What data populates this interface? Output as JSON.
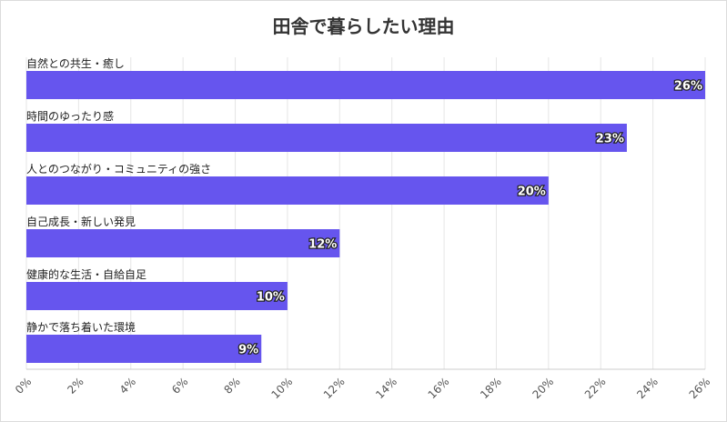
{
  "chart_data": {
    "type": "bar",
    "orientation": "horizontal",
    "title": "田舎で暮らしたい理由",
    "categories": [
      "自然との共生・癒し",
      "時間のゆったり感",
      "人とのつながり・コミュニティの強さ",
      "自己成長・新しい発見",
      "健康的な生活・自給自足",
      "静かで落ち着いた環境"
    ],
    "values": [
      26,
      23,
      20,
      12,
      10,
      9
    ],
    "value_labels": [
      "26%",
      "23%",
      "20%",
      "12%",
      "10%",
      "9%"
    ],
    "xlim": [
      0,
      26
    ],
    "xticks": [
      0,
      2,
      4,
      6,
      8,
      10,
      12,
      14,
      16,
      18,
      20,
      22,
      24,
      26
    ],
    "xtick_labels": [
      "0%",
      "2%",
      "4%",
      "6%",
      "8%",
      "10%",
      "12%",
      "14%",
      "16%",
      "18%",
      "20%",
      "22%",
      "24%",
      "26%"
    ],
    "bar_color": "#6655ee",
    "grid": true,
    "xlabel": "",
    "ylabel": ""
  }
}
